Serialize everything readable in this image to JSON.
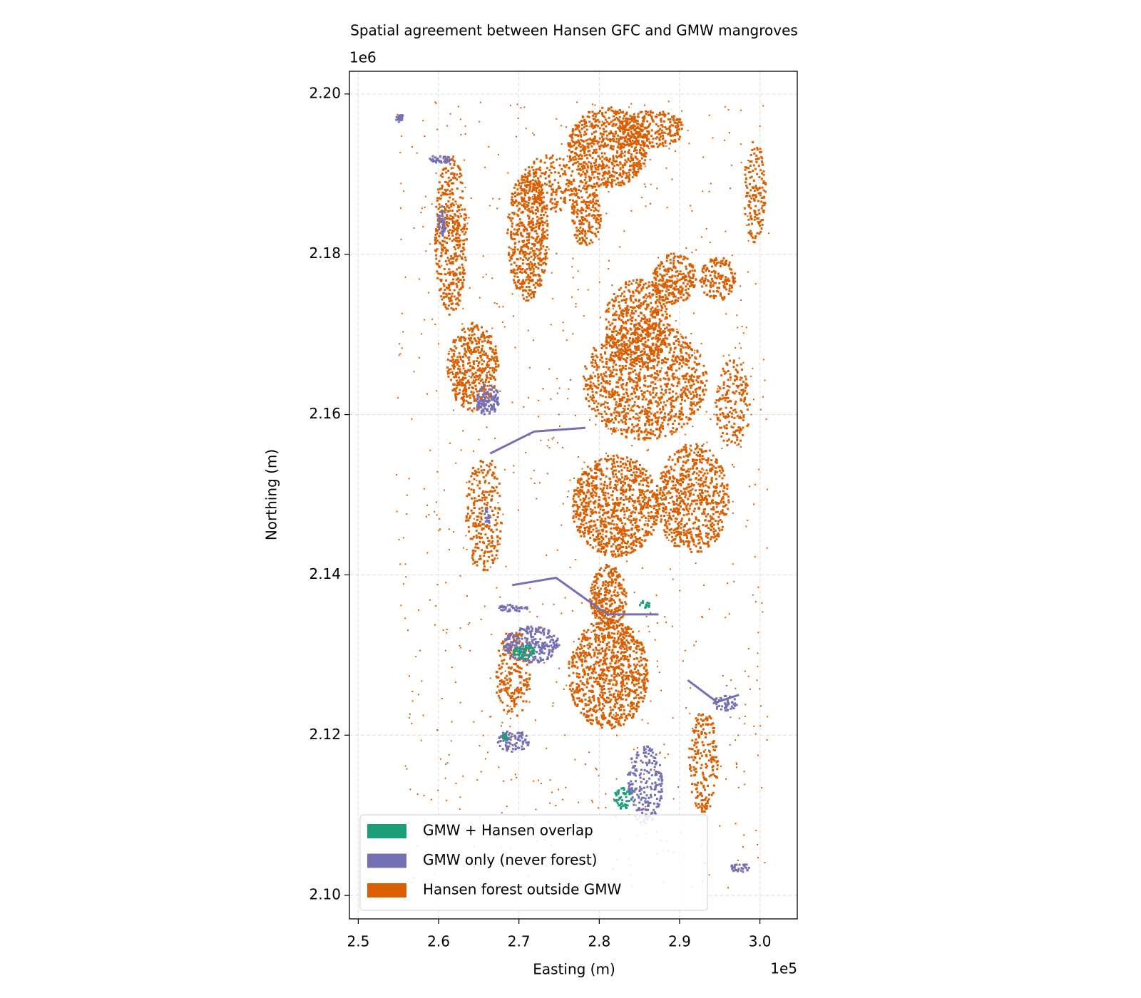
{
  "chart_data": {
    "type": "raster",
    "title": "Spatial agreement between Hansen GFC and GMW mangroves",
    "x_label": "Easting (m)",
    "y_label": "Northing (m)",
    "x_offset_label": "1e5",
    "y_offset_label": "1e6",
    "xlim": [
      248900,
      304650
    ],
    "ylim": [
      2097080,
      2202830
    ],
    "xticks": [
      {
        "value": 250000,
        "label": "2.5"
      },
      {
        "value": 260000,
        "label": "2.6"
      },
      {
        "value": 270000,
        "label": "2.7"
      },
      {
        "value": 280000,
        "label": "2.8"
      },
      {
        "value": 290000,
        "label": "2.9"
      },
      {
        "value": 300000,
        "label": "3.0"
      }
    ],
    "yticks": [
      {
        "value": 2100000,
        "label": "2.10"
      },
      {
        "value": 2120000,
        "label": "2.12"
      },
      {
        "value": 2140000,
        "label": "2.14"
      },
      {
        "value": 2160000,
        "label": "2.16"
      },
      {
        "value": 2180000,
        "label": "2.18"
      },
      {
        "value": 2200000,
        "label": "2.20"
      }
    ],
    "grid": true,
    "legend_position": "lower left",
    "classes": [
      {
        "name": "GMW + Hansen overlap",
        "color": "#1b9e77"
      },
      {
        "name": "GMW only (never forest)",
        "color": "#7570b3"
      },
      {
        "name": "Hansen forest outside GMW",
        "color": "#d95f02"
      }
    ]
  }
}
